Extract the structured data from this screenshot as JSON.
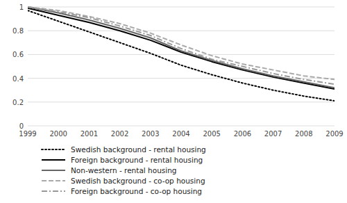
{
  "chart_data": {
    "type": "line",
    "x": [
      1999,
      2000,
      2001,
      2002,
      2003,
      2004,
      2005,
      2006,
      2007,
      2008,
      2009
    ],
    "xlim": [
      1999,
      2009
    ],
    "xticks": [
      1999,
      2000,
      2001,
      2002,
      2003,
      2004,
      2005,
      2006,
      2007,
      2008,
      2009
    ],
    "ylim": [
      0,
      1
    ],
    "yticks": [
      0,
      0.2,
      0.4,
      0.6,
      0.8,
      1
    ],
    "grid": true,
    "legend": "bottom",
    "series": [
      {
        "name": "Swedish background - rental housing",
        "color": "#000000",
        "line_style": "dotted",
        "values": [
          0.97,
          0.88,
          0.79,
          0.7,
          0.61,
          0.51,
          0.43,
          0.36,
          0.3,
          0.25,
          0.21
        ]
      },
      {
        "name": "Foreign background - rental housing",
        "color": "#000000",
        "line_style": "solid",
        "values": [
          0.99,
          0.93,
          0.87,
          0.8,
          0.72,
          0.62,
          0.54,
          0.47,
          0.41,
          0.36,
          0.31
        ]
      },
      {
        "name": "Non-western - rental housing",
        "color": "#666666",
        "line_style": "solid",
        "values": [
          1.0,
          0.95,
          0.89,
          0.82,
          0.74,
          0.63,
          0.55,
          0.48,
          0.42,
          0.37,
          0.32
        ]
      },
      {
        "name": "Swedish background - co-op housing",
        "color": "#aaaaaa",
        "line_style": "dashed",
        "values": [
          1.0,
          0.97,
          0.92,
          0.86,
          0.78,
          0.68,
          0.59,
          0.52,
          0.47,
          0.42,
          0.39
        ]
      },
      {
        "name": "Foreign background - co-op housing",
        "color": "#999999",
        "line_style": "dashdot",
        "values": [
          1.0,
          0.96,
          0.91,
          0.84,
          0.76,
          0.65,
          0.56,
          0.5,
          0.44,
          0.39,
          0.35
        ]
      }
    ]
  }
}
